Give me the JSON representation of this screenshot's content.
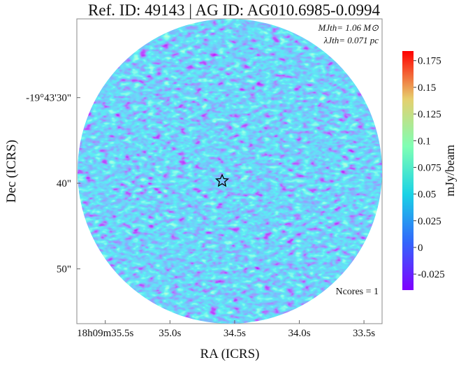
{
  "chart_data": {
    "type": "image",
    "title": "Ref. ID: 49143 | AG ID: AG010.6985-0.0994",
    "xlabel": "RA (ICRS)",
    "ylabel": "Dec (ICRS)",
    "xlim": [
      35.72,
      33.36
    ],
    "xticks": [
      {
        "value": 35.5,
        "label": "18h09m35.5s"
      },
      {
        "value": 35.0,
        "label": "35.0s"
      },
      {
        "value": 34.5,
        "label": "34.5s"
      },
      {
        "value": 34.0,
        "label": "34.0s"
      },
      {
        "value": 33.5,
        "label": "33.5s"
      }
    ],
    "ylim": [
      20.8,
      56.4
    ],
    "yticks": [
      {
        "value": 30,
        "label": "-19°43'30\""
      },
      {
        "value": 40,
        "label": "40\""
      },
      {
        "value": 50,
        "label": "50\""
      }
    ],
    "colorbar_label": "mJy/beam",
    "clim": [
      -0.04,
      0.184
    ],
    "cticks": [
      -0.025,
      0.0,
      0.025,
      0.05,
      0.075,
      0.1,
      0.125,
      0.15,
      0.175
    ],
    "annotations": [
      "MJth= 1.06 M⊙",
      "λJth= 0.071 pc",
      "Ncores = 1"
    ]
  }
}
